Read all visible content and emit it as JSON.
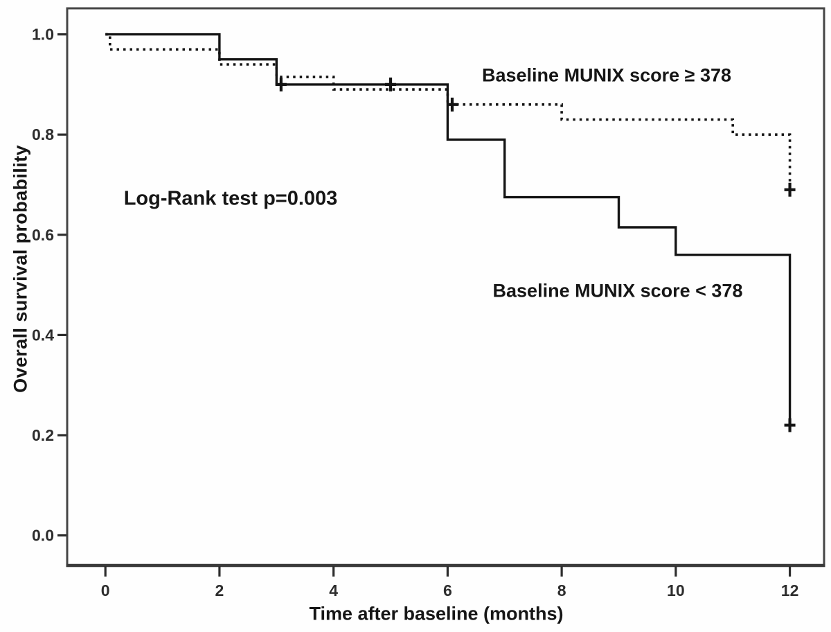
{
  "figure": {
    "kind": "Kaplan-Meier survival plot",
    "annotations": {
      "group_high": "Baseline MUNIX score ≥ 378",
      "log_rank": "Log-Rank test p=0.003",
      "group_low": "Baseline MUNIX score < 378"
    },
    "colors": {
      "curve": "#141414",
      "axis_box": "#454545",
      "tick_text": "#2d2d2d",
      "background": "#fefefe"
    }
  },
  "chart_data": {
    "type": "line",
    "subtype": "kaplan-meier-step",
    "title": "",
    "xlabel": "Time after baseline (months)",
    "ylabel": "Overall survival probability",
    "x_ticks": {
      "values": [
        0,
        2,
        4,
        6,
        8,
        10,
        12
      ],
      "labels": [
        "0",
        "2",
        "4",
        "6",
        "8",
        "10",
        "12"
      ]
    },
    "y_ticks": {
      "values": [
        0.0,
        0.2,
        0.4,
        0.6,
        0.8,
        1.0
      ],
      "labels": [
        "0.0",
        "0.2",
        "0.4",
        "0.6",
        "0.8",
        "1.0"
      ]
    },
    "xlim": [
      -0.67,
      12.6
    ],
    "ylim": [
      -0.06,
      1.052
    ],
    "grid": false,
    "legend_position": "labels-drawn-next-to-curves",
    "p_value_text": "Log-Rank test p=0.003",
    "censor_marker": "+",
    "series": [
      {
        "name": "Baseline MUNIX score ≥ 378",
        "style": "dotted",
        "points": [
          [
            0,
            1.0
          ],
          [
            0.08,
            0.97
          ],
          [
            2,
            0.94
          ],
          [
            3,
            0.915
          ],
          [
            4,
            0.89
          ],
          [
            6,
            0.86
          ],
          [
            8,
            0.83
          ],
          [
            11,
            0.8
          ],
          [
            12,
            0.69
          ]
        ],
        "censored": [
          [
            6.08,
            0.86
          ],
          [
            12,
            0.69
          ]
        ]
      },
      {
        "name": "Baseline MUNIX score < 378",
        "style": "solid",
        "points": [
          [
            0,
            1.0
          ],
          [
            2,
            0.95
          ],
          [
            3,
            0.9
          ],
          [
            6,
            0.79
          ],
          [
            7,
            0.675
          ],
          [
            9,
            0.615
          ],
          [
            10,
            0.56
          ],
          [
            12,
            0.22
          ]
        ],
        "censored": [
          [
            3.08,
            0.9
          ],
          [
            5,
            0.9
          ],
          [
            12,
            0.22
          ]
        ]
      }
    ]
  }
}
